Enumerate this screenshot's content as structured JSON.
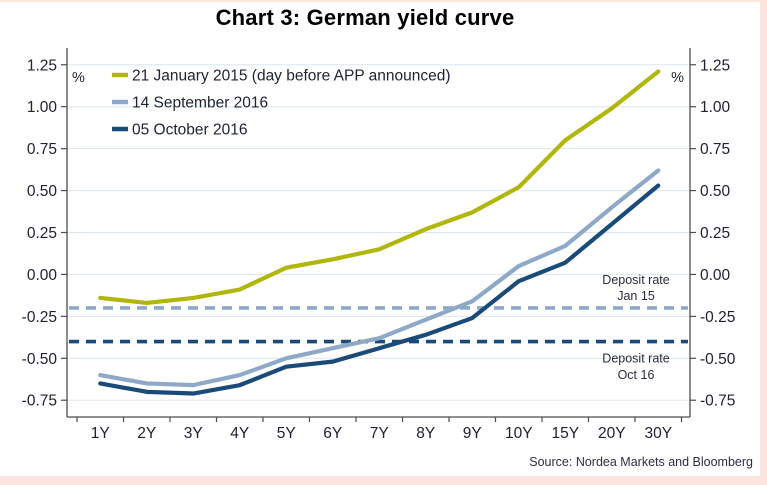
{
  "title": "Chart 3: German yield curve",
  "source": "Source: Nordea Markets and Bloomberg",
  "chart_data": {
    "type": "line",
    "categories": [
      "1Y",
      "2Y",
      "3Y",
      "4Y",
      "5Y",
      "6Y",
      "7Y",
      "8Y",
      "9Y",
      "10Y",
      "15Y",
      "20Y",
      "30Y"
    ],
    "series": [
      {
        "name": "21 January 2015 (day before APP announced)",
        "color": "#b0b708",
        "values": [
          -0.14,
          -0.17,
          -0.14,
          -0.09,
          0.04,
          0.09,
          0.15,
          0.27,
          0.37,
          0.52,
          0.8,
          0.99,
          1.21
        ]
      },
      {
        "name": "14 September 2016",
        "color": "#8ea9c8",
        "values": [
          -0.6,
          -0.65,
          -0.66,
          -0.6,
          -0.5,
          -0.44,
          -0.38,
          -0.27,
          -0.16,
          0.05,
          0.17,
          0.4,
          0.62
        ]
      },
      {
        "name": "05 October 2016",
        "color": "#1a4a78",
        "values": [
          -0.65,
          -0.7,
          -0.71,
          -0.66,
          -0.55,
          -0.52,
          -0.44,
          -0.36,
          -0.26,
          -0.04,
          0.07,
          0.3,
          0.53
        ]
      }
    ],
    "reference_lines": [
      {
        "label": [
          "Deposit rate",
          "Jan 15"
        ],
        "value": -0.2,
        "color": "#8ea9c8",
        "style": "dashed",
        "label_side": "above"
      },
      {
        "label": [
          "Deposit rate",
          "Oct 16"
        ],
        "value": -0.4,
        "color": "#1a4a78",
        "style": "dashed",
        "label_side": "below"
      }
    ],
    "ylim": [
      -0.85,
      1.35
    ],
    "ytick_labels": [
      "1.25",
      "1.00",
      "0.75",
      "0.50",
      "0.25",
      "0.00",
      "-0.25",
      "-0.50",
      "-0.75"
    ],
    "ylabel_left": "%",
    "ylabel_right": "%",
    "grid": true,
    "legend_position": "top-left"
  }
}
